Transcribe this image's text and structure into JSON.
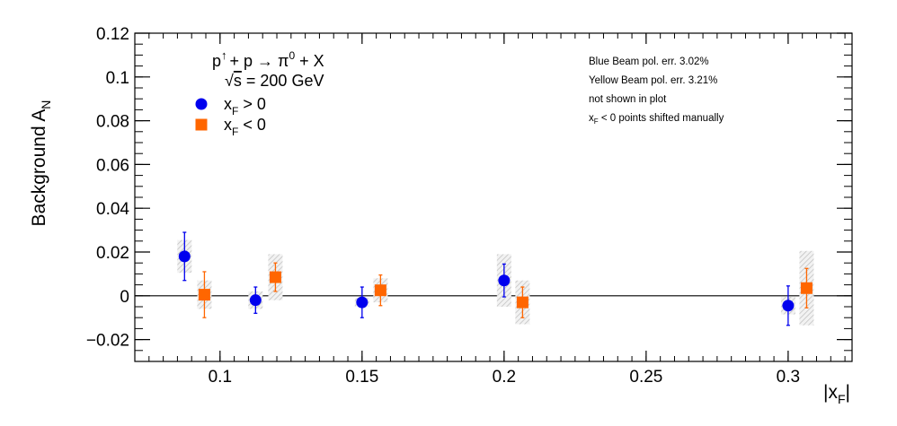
{
  "chart_data": {
    "type": "scatter",
    "title": "",
    "xlabel": "|x_F|",
    "ylabel": "Background A_N",
    "xlim": [
      0.07,
      0.3225
    ],
    "ylim": [
      -0.03,
      0.12
    ],
    "x_ticks": [
      {
        "value": 0.1,
        "label": "0.1"
      },
      {
        "value": 0.15,
        "label": "0.15"
      },
      {
        "value": 0.2,
        "label": "0.2"
      },
      {
        "value": 0.25,
        "label": "0.25"
      },
      {
        "value": 0.3,
        "label": "0.3"
      }
    ],
    "y_ticks": [
      {
        "value": -0.02,
        "label": "−0.02"
      },
      {
        "value": 0,
        "label": "0"
      },
      {
        "value": 0.02,
        "label": "0.02"
      },
      {
        "value": 0.04,
        "label": "0.04"
      },
      {
        "value": 0.06,
        "label": "0.06"
      },
      {
        "value": 0.08,
        "label": "0.08"
      },
      {
        "value": 0.1,
        "label": "0.1"
      },
      {
        "value": 0.12,
        "label": "0.12"
      }
    ],
    "zero_line": true,
    "series": [
      {
        "name": "x_F > 0",
        "marker": "circle",
        "color": "#0000ee",
        "points": [
          {
            "x": 0.0875,
            "y": 0.018,
            "err": 0.011,
            "sys": 0.0075
          },
          {
            "x": 0.1125,
            "y": -0.002,
            "err": 0.006,
            "sys": 0.004
          },
          {
            "x": 0.15,
            "y": -0.003,
            "err": 0.007,
            "sys": 0.002
          },
          {
            "x": 0.2,
            "y": 0.007,
            "err": 0.0075,
            "sys": 0.012
          },
          {
            "x": 0.3,
            "y": -0.0045,
            "err": 0.009,
            "sys": 0.004
          }
        ]
      },
      {
        "name": "x_F < 0",
        "marker": "square",
        "color": "#ff6600",
        "points": [
          {
            "x": 0.0945,
            "y": 0.0005,
            "err": 0.0105,
            "sys": 0.0065
          },
          {
            "x": 0.1195,
            "y": 0.0085,
            "err": 0.0065,
            "sys": 0.0105
          },
          {
            "x": 0.1565,
            "y": 0.0025,
            "err": 0.007,
            "sys": 0.0055
          },
          {
            "x": 0.2065,
            "y": -0.003,
            "err": 0.007,
            "sys": 0.01
          },
          {
            "x": 0.3065,
            "y": 0.0035,
            "err": 0.009,
            "sys": 0.017
          }
        ]
      }
    ],
    "legend": {
      "placement": "top-left",
      "reaction": {
        "p": "p",
        "up": "↑",
        "plus": "+ p → π",
        "sup": "0",
        "rest": " + X"
      },
      "energy": {
        "root": "√",
        "s": "s",
        "rest": " = 200 GeV"
      },
      "entries": [
        {
          "base": "x",
          "sub": "F",
          "rest": " > 0"
        },
        {
          "base": "x",
          "sub": "F",
          "rest": " < 0"
        }
      ]
    },
    "notes": {
      "placement": "top-right",
      "blue": "Blue Beam pol. err. 3.02%",
      "yellow": "Yellow Beam pol. err. 3.21%",
      "not_shown": "not shown in plot",
      "shift": {
        "base": "x",
        "sub": "F",
        "rest": " < 0 points shifted manually"
      }
    },
    "axis_labels": {
      "y": {
        "base": "Background A",
        "sub": "N"
      },
      "x": {
        "pre": "|x",
        "sub": "F",
        "post": "|"
      }
    }
  }
}
